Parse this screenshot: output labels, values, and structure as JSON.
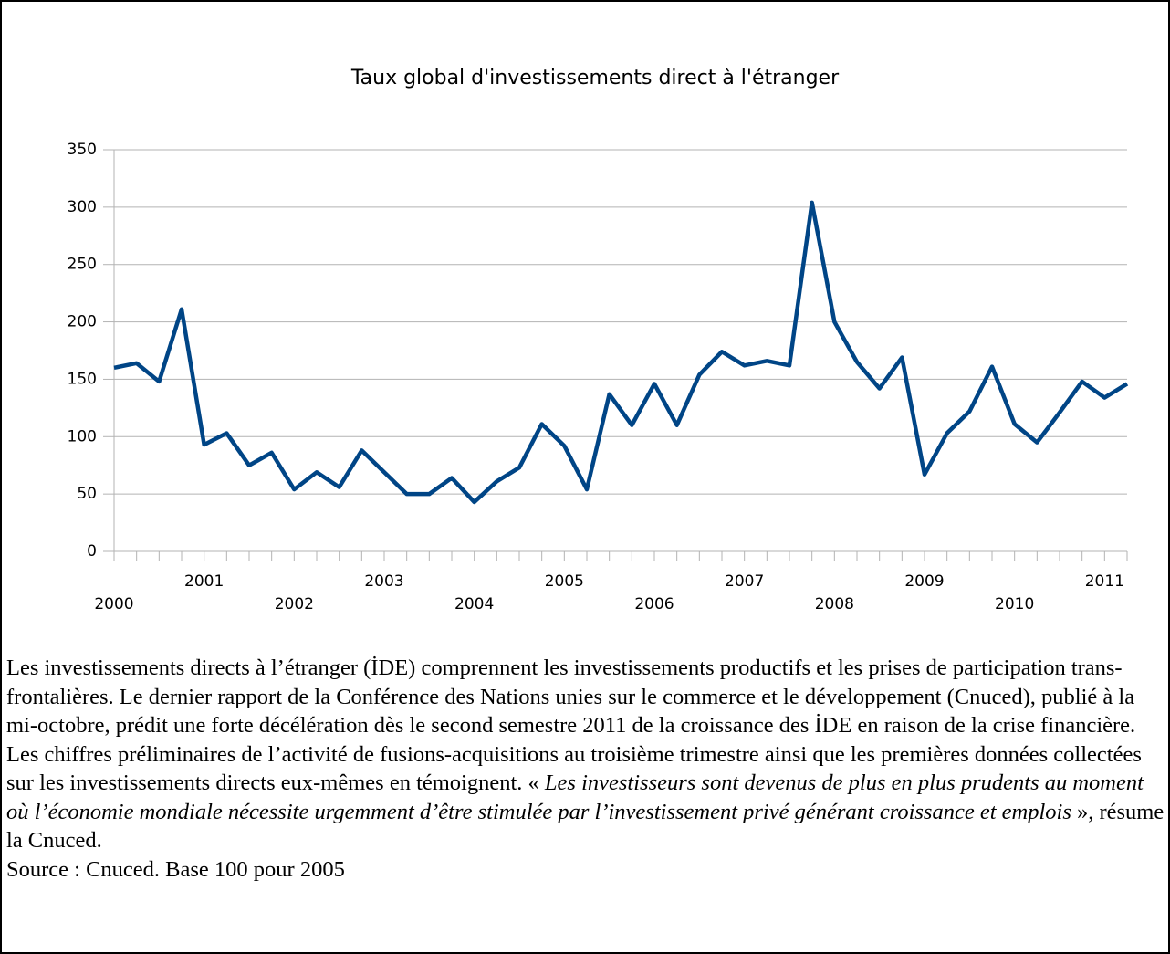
{
  "chart_data": {
    "type": "line",
    "title": "Taux global d'investissements direct à l'étranger",
    "categories": [
      "2000",
      null,
      null,
      null,
      "2001",
      null,
      null,
      null,
      "2002",
      null,
      null,
      null,
      "2003",
      null,
      null,
      null,
      "2004",
      null,
      null,
      null,
      "2005",
      null,
      null,
      null,
      "2006",
      null,
      null,
      null,
      "2007",
      null,
      null,
      null,
      "2008",
      null,
      null,
      null,
      "2009",
      null,
      null,
      null,
      "2010",
      null,
      null,
      null,
      "2011",
      null
    ],
    "values": [
      160,
      164,
      148,
      211,
      93,
      103,
      75,
      86,
      54,
      69,
      56,
      88,
      69,
      50,
      50,
      64,
      43,
      61,
      73,
      111,
      92,
      54,
      137,
      110,
      146,
      110,
      154,
      174,
      162,
      166,
      162,
      304,
      200,
      165,
      142,
      169,
      67,
      103,
      122,
      161,
      111,
      95,
      121,
      148,
      134,
      146
    ],
    "color": "#004586",
    "ylim": [
      0,
      350
    ],
    "yticks": [
      0,
      50,
      100,
      150,
      200,
      250,
      300,
      350
    ],
    "grid": true
  },
  "text": {
    "intro": "Les investissements directs à l’étranger (İDE) comprennent les investissements productifs et les prises de participation trans-frontalières. Le dernier rapport de la Conférence des Nations unies sur le commerce et le développement (Cnuced), publié à la mi-octobre, prédit une forte décélération dès le second semestre 2011 de la croissance des İDE en raison de la crise financière. Les chiffres préliminaires de l’activité de fusions-acquisitions au troisième trimestre ainsi que les premières données collectées sur les investissements directs eux-mêmes en témoignent. « ",
    "quote": "Les investisseurs sont devenus de plus en plus prudents au moment où l’économie mondiale nécessite urgemment d’être stimulée par l’investissement privé générant croissance et emplois",
    "outro": " », résume la Cnuced.",
    "source": "Source : Cnuced. Base 100 pour 2005"
  }
}
